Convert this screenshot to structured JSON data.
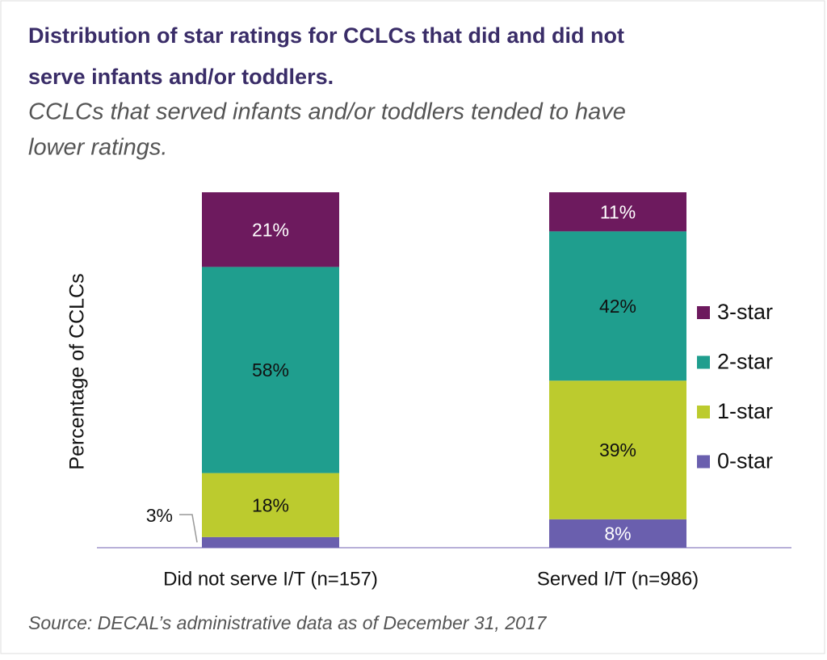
{
  "chart_data": {
    "type": "stacked_bar",
    "title": [
      "Distribution of star ratings for CCLCs that did and did not",
      "serve infants and/or toddlers."
    ],
    "subtitle": [
      "CCLCs that served infants and/or toddlers tended to have",
      "lower ratings."
    ],
    "y_label": "Percentage of CCLCs",
    "source": "Source: DECAL’s administrative data as of December 31, 2017",
    "categories": [
      "Did not serve I/T (n=157)",
      "Served I/T (n=986)"
    ],
    "series": [
      {
        "name": "0-star",
        "color": "#6a5fae",
        "values": [
          3,
          8
        ],
        "value_labels": [
          "3%",
          "8%"
        ]
      },
      {
        "name": "1-star",
        "color": "#bccb2e",
        "values": [
          18,
          39
        ],
        "value_labels": [
          "18%",
          "39%"
        ]
      },
      {
        "name": "2-star",
        "color": "#1f9e8e",
        "values": [
          58,
          42
        ],
        "value_labels": [
          "58%",
          "42%"
        ]
      },
      {
        "name": "3-star",
        "color": "#6d1a5e",
        "values": [
          21,
          11
        ],
        "value_labels": [
          "21%",
          "11%"
        ]
      }
    ],
    "legend": "right"
  }
}
